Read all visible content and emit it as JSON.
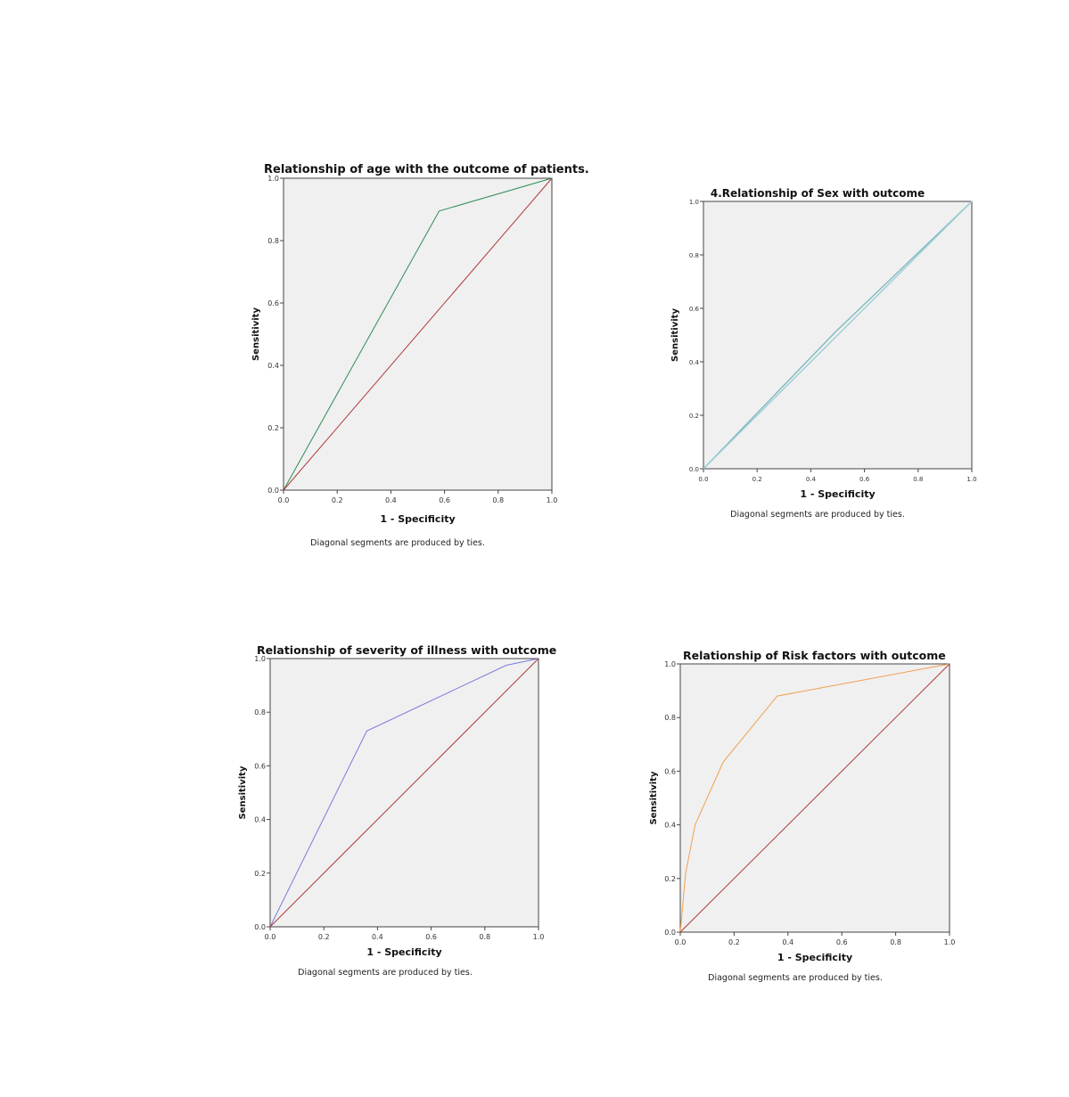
{
  "chart_data": [
    {
      "type": "line",
      "title": "Relationship of age with the outcome of patients.",
      "xlabel": "1 - Specificity",
      "ylabel": "Sensitivity",
      "note": "Diagonal segments are produced by ties.",
      "xlim": [
        0,
        1
      ],
      "ylim": [
        0,
        1
      ],
      "ticks": [
        "0.0",
        "0.2",
        "0.4",
        "0.6",
        "0.8",
        "1.0"
      ],
      "grid": false,
      "series": [
        {
          "color": "#2e8b57",
          "x": [
            0,
            0.58,
            1.0
          ],
          "y": [
            0,
            0.895,
            1.0
          ]
        },
        {
          "color": "#b03a3a",
          "x": [
            0,
            1
          ],
          "y": [
            0,
            1
          ]
        }
      ]
    },
    {
      "type": "line",
      "title": "4.Relationship of Sex with outcome",
      "xlabel": "1 - Specificity",
      "ylabel": "Sensitivity",
      "note": "Diagonal segments are produced by ties.",
      "xlim": [
        0,
        1
      ],
      "ylim": [
        0,
        1
      ],
      "ticks": [
        "0.0",
        "0.2",
        "0.4",
        "0.6",
        "0.8",
        "1.0"
      ],
      "grid": false,
      "series": [
        {
          "color": "#7fb8c0",
          "x": [
            0,
            0.49,
            1.0
          ],
          "y": [
            0,
            0.51,
            1.0
          ]
        },
        {
          "color": "#9ccfd2",
          "x": [
            0,
            1
          ],
          "y": [
            0,
            1
          ]
        }
      ]
    },
    {
      "type": "line",
      "title": "Relationship of severity of illness with outcome",
      "xlabel": "1 - Specificity",
      "ylabel": "Sensitivity",
      "note": "Diagonal segments are produced by ties.",
      "xlim": [
        0,
        1
      ],
      "ylim": [
        0,
        1
      ],
      "ticks": [
        "0.0",
        "0.2",
        "0.4",
        "0.6",
        "0.8",
        "1.0"
      ],
      "grid": false,
      "series": [
        {
          "color": "#7b7bdc",
          "x": [
            0,
            0.36,
            0.88,
            1.0
          ],
          "y": [
            0,
            0.73,
            0.975,
            1.0
          ]
        },
        {
          "color": "#b03a3a",
          "x": [
            0,
            1
          ],
          "y": [
            0,
            1
          ]
        }
      ]
    },
    {
      "type": "line",
      "title": "Relationship of Risk factors with outcome",
      "xlabel": "1 - Specificity",
      "ylabel": "Sensitivity",
      "note": "Diagonal segments are produced by ties.",
      "xlim": [
        0,
        1
      ],
      "ylim": [
        0,
        1
      ],
      "ticks": [
        "0.0",
        "0.2",
        "0.4",
        "0.6",
        "0.8",
        "1.0"
      ],
      "grid": false,
      "series": [
        {
          "color": "#f0a050",
          "x": [
            0,
            0.02,
            0.055,
            0.16,
            0.36,
            1.0
          ],
          "y": [
            0,
            0.22,
            0.4,
            0.635,
            0.88,
            1.0
          ]
        },
        {
          "color": "#b03a3a",
          "x": [
            0,
            1
          ],
          "y": [
            0,
            1
          ]
        }
      ]
    }
  ]
}
